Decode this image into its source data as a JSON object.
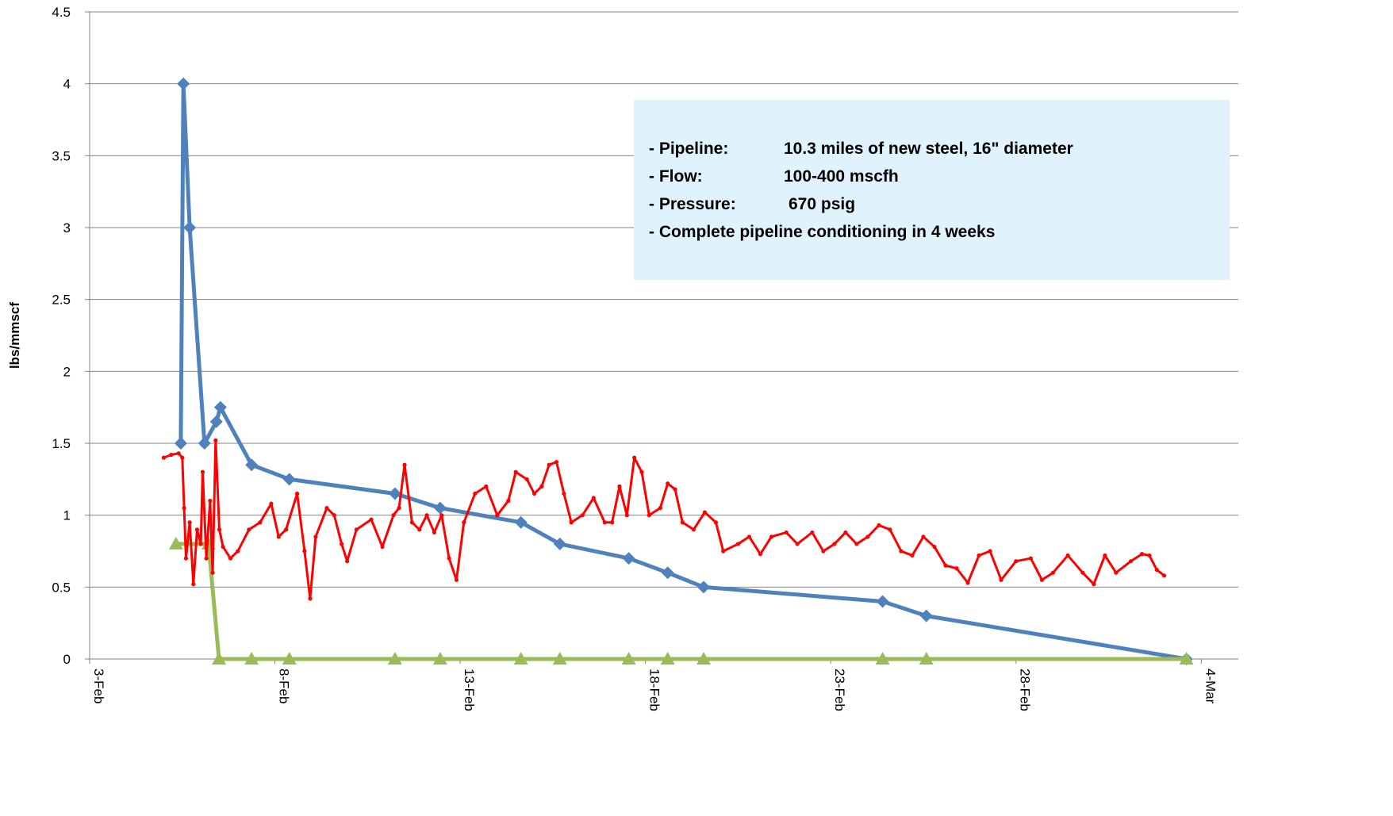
{
  "chart_data": {
    "type": "line",
    "y_label": "lbs/mmscf",
    "xlim": [
      3,
      34
    ],
    "xticks": [
      {
        "value": 3,
        "label": "3-Feb"
      },
      {
        "value": 8,
        "label": "8-Feb"
      },
      {
        "value": 13,
        "label": "13-Feb"
      },
      {
        "value": 18,
        "label": "18-Feb"
      },
      {
        "value": 23,
        "label": "23-Feb"
      },
      {
        "value": 28,
        "label": "28-Feb"
      },
      {
        "value": 33,
        "label": "4-Mar"
      }
    ],
    "ylim": [
      0,
      4.5
    ],
    "yticks": [
      0,
      0.5,
      1,
      1.5,
      2,
      2.5,
      3,
      3.5,
      4,
      4.5
    ],
    "grid": true,
    "series": [
      {
        "color": "#4f81bd",
        "marker": "diamond",
        "x": [
          5.46,
          5.53,
          5.7,
          6.1,
          6.42,
          6.53,
          7.37,
          8.39,
          11.24,
          12.46,
          14.64,
          15.69,
          17.55,
          18.6,
          19.57,
          24.4,
          25.58,
          32.6
        ],
        "values": [
          1.5,
          4.0,
          3.0,
          1.5,
          1.65,
          1.75,
          1.35,
          1.25,
          1.15,
          1.05,
          0.95,
          0.8,
          0.7,
          0.6,
          0.5,
          0.4,
          0.3,
          0.0
        ]
      },
      {
        "color": "#9bbb59",
        "marker": "triangle",
        "x": [
          5.33,
          6.21,
          6.49,
          7.37,
          8.39,
          11.24,
          12.46,
          14.64,
          15.69,
          17.55,
          18.6,
          19.57,
          24.4,
          25.58,
          32.6
        ],
        "values": [
          0.8,
          0.8,
          0,
          0,
          0,
          0,
          0,
          0,
          0,
          0,
          0,
          0,
          0,
          0,
          0
        ]
      },
      {
        "color": "#ff0000",
        "marker": "circle",
        "x": [
          5.0,
          5.2,
          5.4,
          5.5,
          5.55,
          5.6,
          5.7,
          5.8,
          5.9,
          6.0,
          6.05,
          6.15,
          6.25,
          6.32,
          6.4,
          6.5,
          6.6,
          6.8,
          7.0,
          7.3,
          7.6,
          7.9,
          8.1,
          8.3,
          8.6,
          8.8,
          8.95,
          9.1,
          9.4,
          9.6,
          9.8,
          9.95,
          10.2,
          10.6,
          10.9,
          11.2,
          11.35,
          11.5,
          11.7,
          11.9,
          12.1,
          12.3,
          12.5,
          12.7,
          12.9,
          13.1,
          13.4,
          13.7,
          14.0,
          14.3,
          14.5,
          14.8,
          15.0,
          15.2,
          15.4,
          15.6,
          15.8,
          16.0,
          16.3,
          16.6,
          16.9,
          17.1,
          17.3,
          17.5,
          17.7,
          17.9,
          18.1,
          18.4,
          18.6,
          18.8,
          19.0,
          19.3,
          19.6,
          19.9,
          20.1,
          20.5,
          20.8,
          21.1,
          21.4,
          21.8,
          22.1,
          22.5,
          22.8,
          23.1,
          23.4,
          23.7,
          24.0,
          24.3,
          24.6,
          24.9,
          25.2,
          25.5,
          25.8,
          26.1,
          26.4,
          26.7,
          27.0,
          27.3,
          27.6,
          28.0,
          28.4,
          28.7,
          29.0,
          29.4,
          29.8,
          30.1,
          30.4,
          30.7,
          31.1,
          31.4,
          31.6,
          31.8,
          32.0
        ],
        "values": [
          1.4,
          1.42,
          1.43,
          1.4,
          1.05,
          0.7,
          0.95,
          0.52,
          0.9,
          0.8,
          1.3,
          0.7,
          1.1,
          0.6,
          1.52,
          0.9,
          0.78,
          0.7,
          0.75,
          0.9,
          0.95,
          1.08,
          0.85,
          0.9,
          1.15,
          0.75,
          0.42,
          0.85,
          1.05,
          1.0,
          0.8,
          0.68,
          0.9,
          0.97,
          0.78,
          1.0,
          1.05,
          1.35,
          0.95,
          0.9,
          1.0,
          0.88,
          1.0,
          0.7,
          0.55,
          0.95,
          1.15,
          1.2,
          1.0,
          1.1,
          1.3,
          1.25,
          1.15,
          1.2,
          1.35,
          1.37,
          1.15,
          0.95,
          1.0,
          1.12,
          0.95,
          0.95,
          1.2,
          1.0,
          1.4,
          1.3,
          1.0,
          1.05,
          1.22,
          1.18,
          0.95,
          0.9,
          1.02,
          0.95,
          0.75,
          0.8,
          0.85,
          0.73,
          0.85,
          0.88,
          0.8,
          0.88,
          0.75,
          0.8,
          0.88,
          0.8,
          0.85,
          0.93,
          0.9,
          0.75,
          0.72,
          0.85,
          0.78,
          0.65,
          0.63,
          0.53,
          0.72,
          0.75,
          0.55,
          0.68,
          0.7,
          0.55,
          0.6,
          0.72,
          0.6,
          0.52,
          0.72,
          0.6,
          0.68,
          0.73,
          0.72,
          0.62,
          0.58
        ]
      }
    ],
    "annotation": [
      {
        "label": "- Pipeline:",
        "text": "10.3 miles of new steel, 16\" diameter"
      },
      {
        "label": "- Flow:",
        "text": "100-400 mscfh"
      },
      {
        "label": "- Pressure:",
        "text": "670 psig"
      },
      {
        "label": "- Complete pipeline conditioning in 4 weeks"
      }
    ]
  }
}
